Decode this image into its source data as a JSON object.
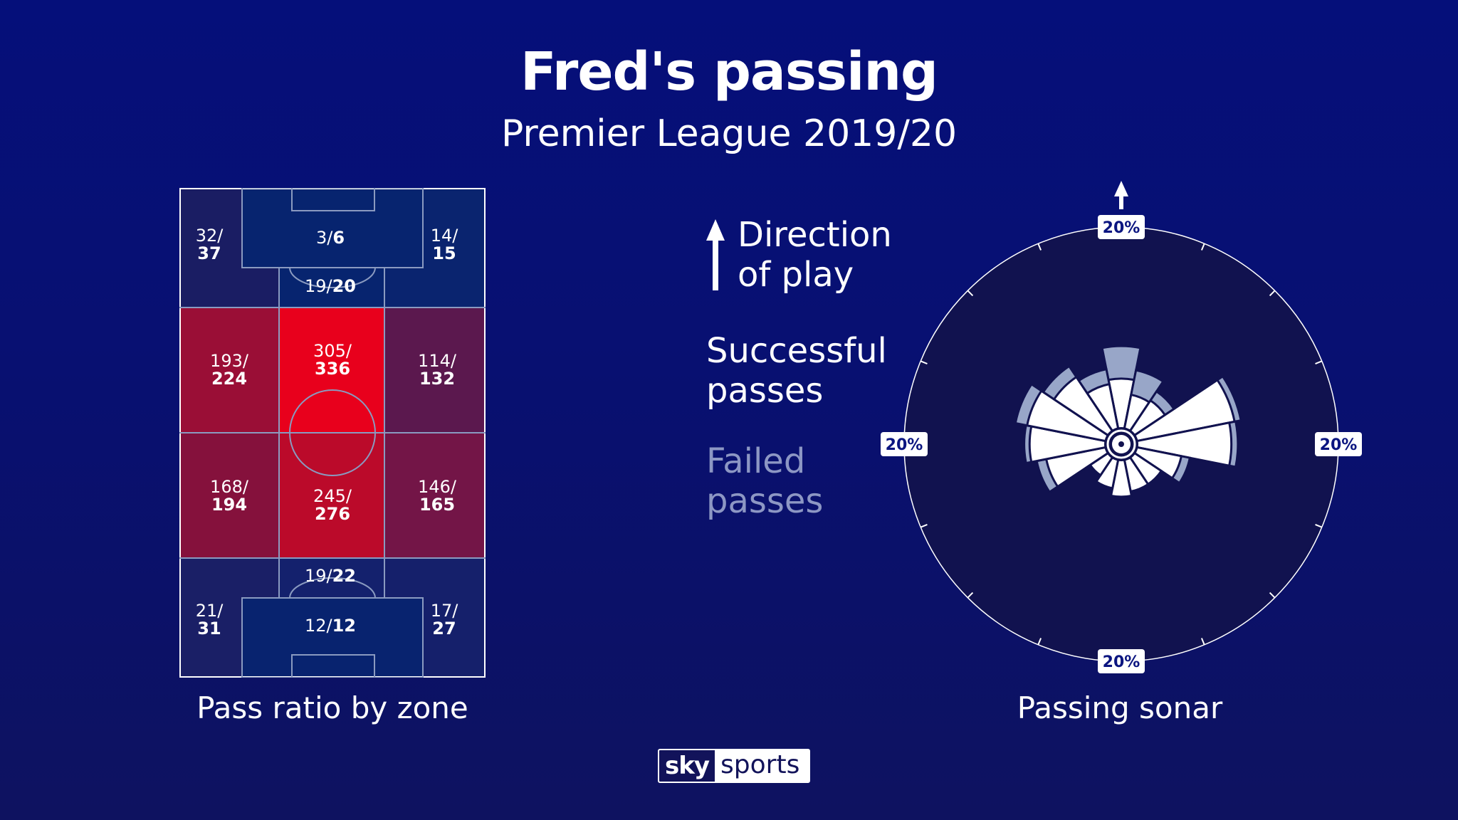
{
  "header": {
    "title": "Fred's passing",
    "subtitle": "Premier League 2019/20"
  },
  "legend": {
    "direction": "Direction of play",
    "direction_line1": "Direction",
    "direction_line2": "of play",
    "successful_line1": "Successful",
    "successful_line2": "passes",
    "failed_line1": "Failed",
    "failed_line2": "passes"
  },
  "captions": {
    "left": "Pass ratio by zone",
    "right": "Passing sonar"
  },
  "logo": {
    "sky": "sky",
    "sports": "sports"
  },
  "colors": {
    "background": "#07107a",
    "sonar_bg": "#11124f",
    "successful": "#ffffff",
    "failed": "#98a6c8",
    "pitch_line": "#8a9ac0",
    "zone_low": "#16216b",
    "zone_high": "#e8001c"
  },
  "chart_data": [
    {
      "type": "heatmap",
      "title": "Pass ratio by zone",
      "description": "Successful/total passes by pitch zone; direction of play upward",
      "zones": [
        {
          "id": "att-left",
          "successful": 32,
          "total": 37,
          "color": "#1a1d63"
        },
        {
          "id": "att-box",
          "successful": 3,
          "total": 6,
          "color": "#07246f"
        },
        {
          "id": "att-right",
          "successful": 14,
          "total": 15,
          "color": "#0a246f"
        },
        {
          "id": "att-arc",
          "successful": 19,
          "total": 20,
          "color": "#0a246f"
        },
        {
          "id": "mid-att-left",
          "successful": 193,
          "total": 224,
          "color": "#9a0e36"
        },
        {
          "id": "mid-att-centre",
          "successful": 305,
          "total": 336,
          "color": "#e8001c"
        },
        {
          "id": "mid-att-right",
          "successful": 114,
          "total": 132,
          "color": "#5b184e"
        },
        {
          "id": "mid-def-left",
          "successful": 168,
          "total": 194,
          "color": "#85113c"
        },
        {
          "id": "mid-def-centre",
          "successful": 245,
          "total": 276,
          "color": "#bb0a2a"
        },
        {
          "id": "mid-def-right",
          "successful": 146,
          "total": 165,
          "color": "#731547"
        },
        {
          "id": "def-arc",
          "successful": 19,
          "total": 22,
          "color": "#14216d"
        },
        {
          "id": "def-left",
          "successful": 21,
          "total": 31,
          "color": "#1a1f66"
        },
        {
          "id": "def-box",
          "successful": 12,
          "total": 12,
          "color": "#08236f"
        },
        {
          "id": "def-right",
          "successful": 17,
          "total": 27,
          "color": "#15206b"
        }
      ]
    },
    {
      "type": "polar-bar",
      "title": "Passing sonar",
      "ring_label": "20%",
      "ring_value_pct": 20,
      "sector_count": 16,
      "sector_width_deg": 22.5,
      "angle_reference": "0 = up (direction of play), clockwise",
      "series": [
        {
          "name": "Successful passes",
          "color": "#ffffff"
        },
        {
          "name": "Failed passes",
          "color": "#98a6c8"
        }
      ],
      "sectors": [
        {
          "angle": 0,
          "successful_pct": 4.6,
          "total_pct": 7.6
        },
        {
          "angle": 22.5,
          "successful_pct": 3.2,
          "total_pct": 5.5
        },
        {
          "angle": 45,
          "successful_pct": 3.4,
          "total_pct": 4.4
        },
        {
          "angle": 67.5,
          "successful_pct": 9.2,
          "total_pct": 9.8
        },
        {
          "angle": 90,
          "successful_pct": 8.7,
          "total_pct": 9.3
        },
        {
          "angle": 112.5,
          "successful_pct": 4.2,
          "total_pct": 5.0
        },
        {
          "angle": 135,
          "successful_pct": 3.0,
          "total_pct": 3.0
        },
        {
          "angle": 157.5,
          "successful_pct": 3.0,
          "total_pct": 3.0
        },
        {
          "angle": 180,
          "successful_pct": 3.4,
          "total_pct": 3.4
        },
        {
          "angle": 202.5,
          "successful_pct": 2.7,
          "total_pct": 2.7
        },
        {
          "angle": 225,
          "successful_pct": 2.0,
          "total_pct": 2.0
        },
        {
          "angle": 247.5,
          "successful_pct": 5.6,
          "total_pct": 6.5
        },
        {
          "angle": 270,
          "successful_pct": 7.0,
          "total_pct": 7.5
        },
        {
          "angle": 292.5,
          "successful_pct": 7.4,
          "total_pct": 8.5
        },
        {
          "angle": 315,
          "successful_pct": 6.0,
          "total_pct": 7.2
        },
        {
          "angle": 337.5,
          "successful_pct": 4.2,
          "total_pct": 5.6
        }
      ]
    }
  ]
}
